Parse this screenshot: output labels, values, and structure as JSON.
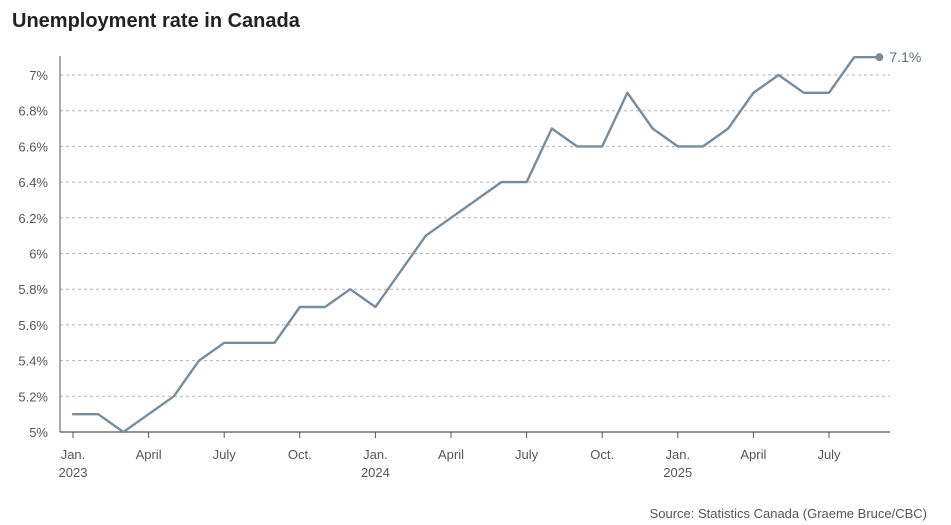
{
  "title": "Unemployment rate in Canada",
  "source": "Source: Statistics Canada (Graeme Bruce/CBC)",
  "colors": {
    "line": "#7a8c99",
    "grid": "#b5b5b5",
    "axis": "#555555",
    "end_label": "#5f6f7d"
  },
  "chart_data": {
    "type": "line",
    "title": "Unemployment rate in Canada",
    "xlabel": "",
    "ylabel": "",
    "ylim": [
      5.0,
      7.1
    ],
    "y_ticks": [
      5.0,
      5.2,
      5.4,
      5.6,
      5.8,
      6.0,
      6.2,
      6.4,
      6.6,
      6.8,
      7.0
    ],
    "y_tick_labels": [
      "5%",
      "5.2%",
      "5.4%",
      "5.6%",
      "5.8%",
      "6%",
      "6.2%",
      "6.4%",
      "6.6%",
      "6.8%",
      "7%"
    ],
    "grid": true,
    "x": [
      "2023-01",
      "2023-02",
      "2023-03",
      "2023-04",
      "2023-05",
      "2023-06",
      "2023-07",
      "2023-08",
      "2023-09",
      "2023-10",
      "2023-11",
      "2023-12",
      "2024-01",
      "2024-02",
      "2024-03",
      "2024-04",
      "2024-05",
      "2024-06",
      "2024-07",
      "2024-08",
      "2024-09",
      "2024-10",
      "2024-11",
      "2024-12",
      "2025-01",
      "2025-02",
      "2025-03",
      "2025-04",
      "2025-05",
      "2025-06",
      "2025-07",
      "2025-08",
      "2025-09"
    ],
    "x_ticks": [
      {
        "index": 0,
        "lines": [
          "Jan.",
          "2023"
        ]
      },
      {
        "index": 3,
        "lines": [
          "April"
        ]
      },
      {
        "index": 6,
        "lines": [
          "July"
        ]
      },
      {
        "index": 9,
        "lines": [
          "Oct."
        ]
      },
      {
        "index": 12,
        "lines": [
          "Jan.",
          "2024"
        ]
      },
      {
        "index": 15,
        "lines": [
          "April"
        ]
      },
      {
        "index": 18,
        "lines": [
          "July"
        ]
      },
      {
        "index": 21,
        "lines": [
          "Oct."
        ]
      },
      {
        "index": 24,
        "lines": [
          "Jan.",
          "2025"
        ]
      },
      {
        "index": 27,
        "lines": [
          "April"
        ]
      },
      {
        "index": 30,
        "lines": [
          "July"
        ]
      }
    ],
    "series": [
      {
        "name": "Unemployment rate",
        "values": [
          5.1,
          5.1,
          5.0,
          5.1,
          5.2,
          5.4,
          5.5,
          5.5,
          5.5,
          5.7,
          5.7,
          5.8,
          5.7,
          5.9,
          6.1,
          6.2,
          6.3,
          6.4,
          6.4,
          6.7,
          6.6,
          6.6,
          6.9,
          6.7,
          6.6,
          6.6,
          6.7,
          6.9,
          7.0,
          6.9,
          6.9,
          7.1,
          7.1
        ]
      }
    ],
    "end_label": "7.1%"
  }
}
